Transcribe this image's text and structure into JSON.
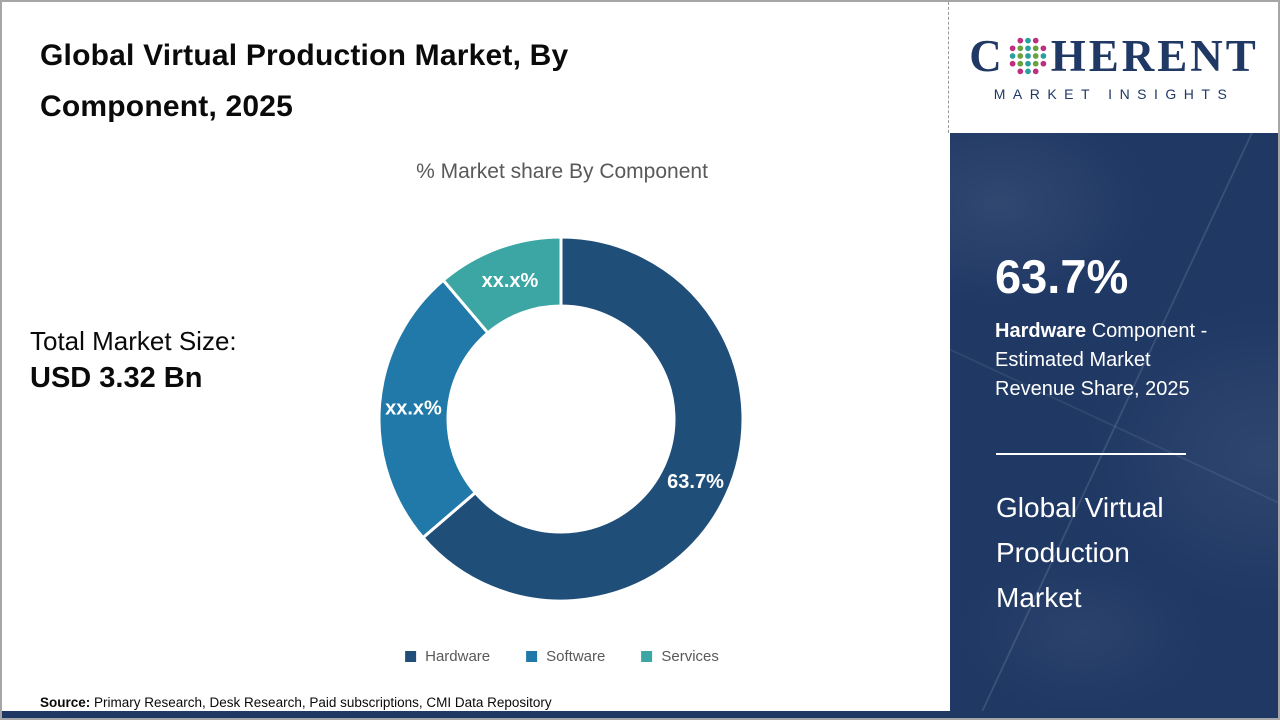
{
  "header": {
    "title_lines": [
      "Global Virtual Production Market, By",
      "Component, 2025"
    ]
  },
  "logo": {
    "prefix": "C",
    "suffix": "HERENT",
    "subtitle": "MARKET INSIGHTS",
    "brand_color": "#1F3864",
    "globe_icon": "dotted-globe"
  },
  "chart_data": {
    "type": "pie",
    "subtype": "donut",
    "title": "% Market share By Component",
    "categories": [
      "Hardware",
      "Software",
      "Services"
    ],
    "values": [
      63.7,
      25.1,
      11.2
    ],
    "labels": [
      "63.7%",
      "xx.x%",
      "xx.x%"
    ],
    "colors": [
      "#1F4E79",
      "#2079A8",
      "#3BA6A3"
    ],
    "legend_position": "bottom",
    "label_color": "#ffffff"
  },
  "total_market": {
    "label": "Total Market Size:",
    "value": "USD 3.32 Bn"
  },
  "sidebar": {
    "stat_value": "63.7%",
    "stat_desc_bold": "Hardware",
    "stat_desc_line1_rest": " Component -",
    "stat_desc_line2": "Estimated Market",
    "stat_desc_line3": "Revenue Share, 2025",
    "market_name_lines": [
      "Global Virtual",
      "Production",
      "Market"
    ],
    "bg_color": "#1F3864"
  },
  "source": {
    "label": "Source:",
    "text": " Primary Research, Desk Research, Paid subscriptions, CMI Data Repository"
  }
}
